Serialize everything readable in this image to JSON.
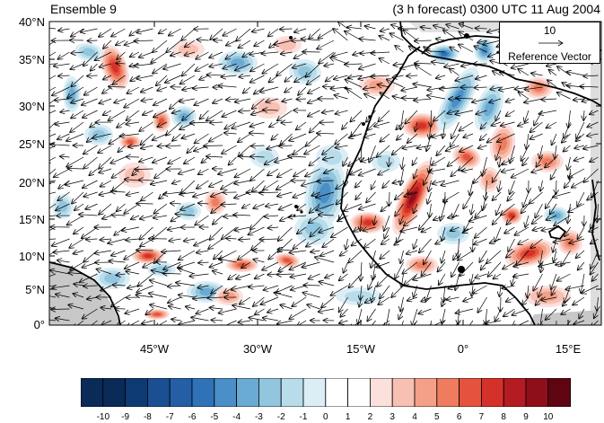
{
  "title_left": "Ensemble 9",
  "title_right": "(3 h forecast) 0300 UTC 11 Aug 2004",
  "lat_labels": [
    "40°N",
    "35°N",
    "30°N",
    "25°N",
    "20°N",
    "15°N",
    "10°N",
    "5°N",
    "0°"
  ],
  "lon_labels": [
    "45°W",
    "30°W",
    "15°W",
    "0°",
    "15°E"
  ],
  "reference_vector": {
    "magnitude": "10",
    "label": "Reference Vector"
  },
  "colorbar": {
    "labels": [
      "-10",
      "-9",
      "-8",
      "-7",
      "-6",
      "-5",
      "-4",
      "-3",
      "-2",
      "-1",
      "0",
      "1",
      "2",
      "3",
      "4",
      "5",
      "6",
      "7",
      "8",
      "9",
      "10"
    ],
    "colors": [
      "#0a2a57",
      "#0e3a74",
      "#1a4f93",
      "#245fa6",
      "#2f72b8",
      "#4a8fc7",
      "#6aabd4",
      "#92c5de",
      "#b8dcea",
      "#dbeef6",
      "#ffffff",
      "#ffffff",
      "#fbe0dc",
      "#f8c0b2",
      "#f4a088",
      "#ef7c5f",
      "#e5533f",
      "#d43229",
      "#b41b22",
      "#8e0f19",
      "#5f0511"
    ]
  },
  "map": {
    "domain": {
      "lon_min": -60,
      "lon_max": 20,
      "lat_min": 0,
      "lat_max": 40
    },
    "land_color": "#c8c8c8"
  }
}
